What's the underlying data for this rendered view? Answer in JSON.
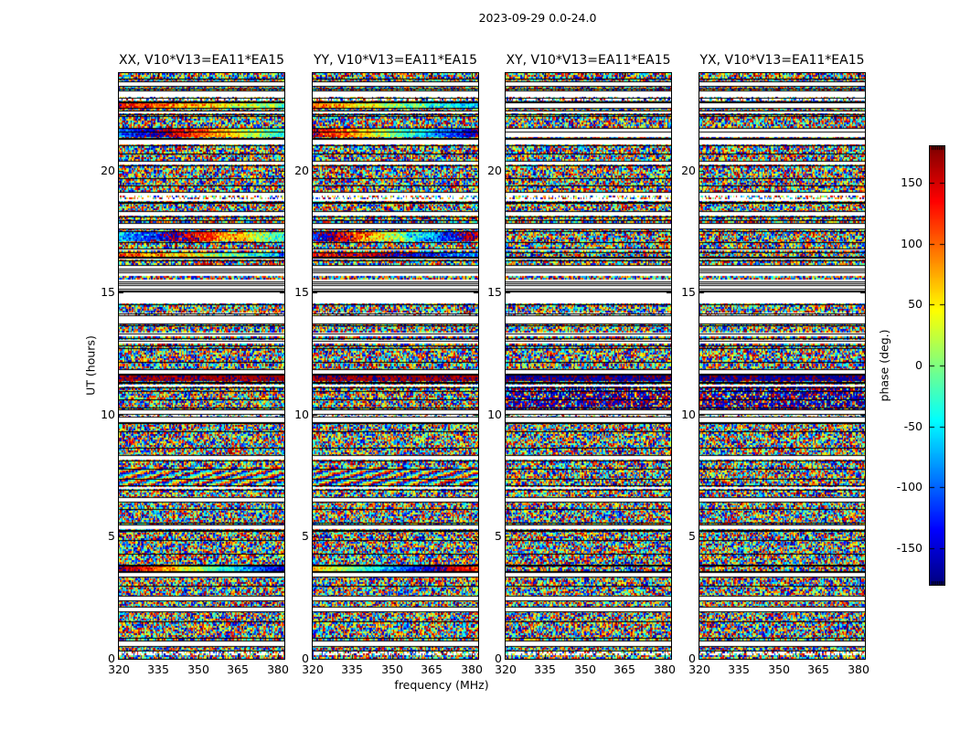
{
  "figure": {
    "title": "2023-09-29 0.0-24.0",
    "background": "#ffffff",
    "text_color": "#000000"
  },
  "chart_data": {
    "type": "heatmap",
    "title": "2023-09-29 0.0-24.0",
    "subtitle": "",
    "xlabel": "frequency (MHz)",
    "ylabel": "UT (hours)",
    "xlim": [
      320,
      382.5
    ],
    "ylim": [
      0,
      24
    ],
    "x_ticks": [
      320,
      335,
      350,
      365,
      380
    ],
    "y_ticks": [
      20,
      15,
      10,
      5,
      0
    ],
    "grid": false,
    "legend": "none",
    "colorbar": {
      "label": "phase (deg.)",
      "cmap": "jet",
      "vmin": -180,
      "vmax": 180,
      "tick_values": [
        150,
        100,
        50,
        0,
        -50,
        -100,
        -150
      ],
      "tick_labels": [
        "150",
        "100",
        "50",
        "0",
        "-50",
        "-100",
        "-150"
      ]
    },
    "panels": [
      {
        "key": "xx",
        "title": "XX, V10*V13=EA11*EA15",
        "seed": 101
      },
      {
        "key": "yy",
        "title": "YY, V10*V13=EA11*EA15",
        "seed": 202
      },
      {
        "key": "xy",
        "title": "XY, V10*V13=EA11*EA15",
        "seed": 303
      },
      {
        "key": "yx",
        "title": "YX, V10*V13=EA11*EA15",
        "seed": 404
      }
    ],
    "content_description": "Dynamic-spectrum phase plots (time vs frequency) of interferometric visibility phase for baseline V10*V13=EA11*EA15 on 2023-09-29, 0-24 h UT. Mostly random phase noise in jet colors, broken into scan blocks by thin black lines and white flagged-time gaps; XX and YY show smooth wrapped phase ramps (coherent fringes) at several times.",
    "noise_grid": {
      "time_rows": 320,
      "channels": 128
    },
    "time_gaps": [
      [
        0.55,
        0.72
      ],
      [
        1.95,
        2.12
      ],
      [
        2.4,
        2.58
      ],
      [
        3.38,
        3.52
      ],
      [
        5.3,
        5.5
      ],
      [
        6.45,
        6.6
      ],
      [
        6.95,
        7.08
      ],
      [
        8.15,
        8.32
      ],
      [
        9.7,
        9.9
      ],
      [
        10.05,
        10.2
      ],
      [
        11.15,
        11.28
      ],
      [
        11.7,
        11.85
      ],
      [
        12.88,
        13.02
      ],
      [
        13.18,
        13.32
      ],
      [
        13.75,
        14.05
      ],
      [
        14.55,
        15.08
      ],
      [
        16.36,
        16.44
      ],
      [
        16.7,
        16.78
      ],
      [
        17.65,
        17.85
      ],
      [
        18.15,
        18.32
      ],
      [
        18.75,
        19.1
      ],
      [
        20.25,
        20.38
      ],
      [
        21.05,
        21.3
      ],
      [
        22.35,
        22.45
      ],
      [
        23.0,
        23.25
      ],
      [
        23.5,
        23.65
      ]
    ],
    "sparse_rows": [
      [
        0.12,
        0.3
      ],
      [
        9.9,
        10.02
      ],
      [
        14.05,
        14.2
      ],
      [
        18.86,
        18.98
      ],
      [
        22.86,
        23.0
      ]
    ],
    "barcode": {
      "t": [
        15.08,
        16.12
      ],
      "lines": 10,
      "noise_rows": [
        [
          15.56,
          15.64
        ]
      ]
    },
    "features": [
      {
        "type": "ramp",
        "panels": [
          0
        ],
        "t": [
          21.35,
          21.72
        ],
        "start": -100,
        "slope": -300,
        "noise": 25
      },
      {
        "type": "ramp",
        "panels": [
          1
        ],
        "t": [
          21.35,
          21.72
        ],
        "start": 160,
        "slope": -330,
        "noise": 25
      },
      {
        "type": "gap",
        "panels": [
          2,
          3
        ],
        "t": [
          21.35,
          21.72
        ]
      },
      {
        "type": "ramp",
        "panels": [
          0
        ],
        "t": [
          22.6,
          22.82
        ],
        "start": 140,
        "slope": -150,
        "noise": 30
      },
      {
        "type": "ramp",
        "panels": [
          1
        ],
        "t": [
          22.6,
          22.82
        ],
        "start": 100,
        "slope": -170,
        "noise": 30
      },
      {
        "type": "gap",
        "panels": [
          2,
          3
        ],
        "t": [
          22.6,
          22.82
        ]
      },
      {
        "type": "ramp",
        "panels": [
          0
        ],
        "t": [
          17.1,
          17.5
        ],
        "start": -60,
        "slope": -330,
        "noise": 35
      },
      {
        "type": "ramp",
        "panels": [
          1
        ],
        "t": [
          17.1,
          17.5
        ],
        "start": -130,
        "slope": -440,
        "noise": 35
      },
      {
        "type": "ramp",
        "panels": [
          0
        ],
        "t": [
          16.45,
          16.65
        ],
        "start": 130,
        "slope": -200,
        "noise": 35
      },
      {
        "type": "ramp",
        "panels": [
          1
        ],
        "t": [
          16.45,
          16.65
        ],
        "start": 120,
        "slope": 150,
        "noise": 35
      },
      {
        "type": "ramp",
        "panels": [
          0
        ],
        "t": [
          3.6,
          3.82
        ],
        "start": 180,
        "slope": -340,
        "noise": 25
      },
      {
        "type": "ramp",
        "panels": [
          1
        ],
        "t": [
          3.6,
          3.82
        ],
        "start": 70,
        "slope": -320,
        "noise": 25
      },
      {
        "type": "uniform",
        "panels": [
          0,
          1
        ],
        "t": [
          11.38,
          11.62
        ],
        "value": 172,
        "noise": 12
      },
      {
        "type": "uniform",
        "panels": [
          2,
          3
        ],
        "t": [
          11.38,
          11.62
        ],
        "value": -172,
        "noise": 12
      },
      {
        "type": "fringe",
        "panels": [
          0,
          1
        ],
        "t": [
          7.15,
          7.85
        ],
        "start": -160,
        "cycles": 7.2,
        "row_shift": 95,
        "noise": 45
      },
      {
        "type": "dark",
        "panels": [
          2,
          3
        ],
        "t": [
          10.2,
          11.15
        ],
        "prob": 0.55
      }
    ]
  }
}
